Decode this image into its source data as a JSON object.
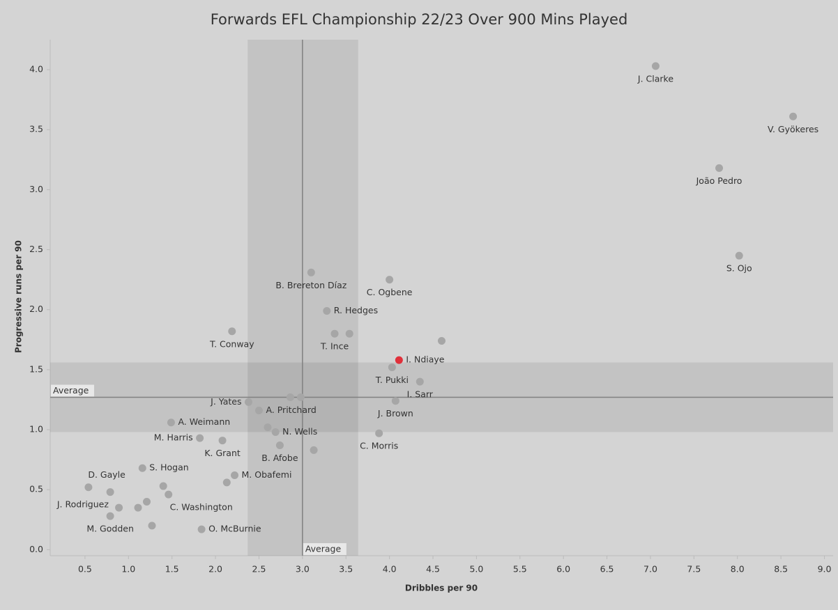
{
  "chart_data": {
    "type": "scatter",
    "title": "Forwards EFL Championship 22/23 Over 900 Mins Played",
    "x_label": "Dribbles per 90",
    "y_label": "Progressive runs per 90",
    "xlim": [
      0.1,
      9.1
    ],
    "ylim": [
      -0.05,
      4.25
    ],
    "xticks": [
      0.5,
      {
        "value": 1,
        "label": "1.0"
      },
      1.5,
      {
        "value": 2,
        "label": "2.0"
      },
      2.5,
      {
        "value": 3,
        "label": "3.0"
      },
      3.5,
      {
        "value": 4,
        "label": "4.0"
      },
      4.5,
      {
        "value": 5,
        "label": "5.0"
      },
      5.5,
      {
        "value": 6,
        "label": "6.0"
      },
      6.5,
      {
        "value": 7,
        "label": "7.0"
      },
      7.5,
      {
        "value": 8,
        "label": "8.0"
      },
      8.5,
      {
        "value": 9,
        "label": "9.0"
      }
    ],
    "yticks": [
      {
        "value": 0,
        "label": "0.0"
      },
      0.5,
      {
        "value": 1,
        "label": "1.0"
      },
      1.5,
      {
        "value": 2,
        "label": "2.0"
      },
      2.5,
      {
        "value": 3,
        "label": "3.0"
      },
      3.5,
      {
        "value": 4,
        "label": "4.0"
      }
    ],
    "reference": {
      "x": 3.0,
      "y": 1.27,
      "x_band": [
        2.37,
        3.64
      ],
      "y_band": [
        0.98,
        1.56
      ],
      "x_label": "Average",
      "y_label": "Average"
    },
    "series": [
      {
        "color": "#a6a6a6",
        "x": [
          7.06,
          8.64,
          7.79,
          8.02,
          3.1,
          4.0,
          3.28,
          2.19,
          3.37,
          3.54,
          4.6,
          4.03,
          4.35,
          4.07,
          2.38,
          2.86,
          2.98,
          2.5,
          1.49,
          2.69,
          2.6,
          3.88,
          1.82,
          2.08,
          2.74,
          3.13,
          1.16,
          2.22,
          2.13,
          0.79,
          0.54,
          0.79,
          0.89,
          1.11,
          1.21,
          1.4,
          1.27,
          1.46,
          1.84
        ],
        "values": [
          4.03,
          3.61,
          3.18,
          2.45,
          2.31,
          2.25,
          1.99,
          1.82,
          1.8,
          1.8,
          1.74,
          1.52,
          1.4,
          1.24,
          1.23,
          1.27,
          1.27,
          1.16,
          1.06,
          0.98,
          1.02,
          0.97,
          0.93,
          0.91,
          0.87,
          0.83,
          0.68,
          0.62,
          0.56,
          0.48,
          0.52,
          0.28,
          0.35,
          0.35,
          0.4,
          0.53,
          0.2,
          0.46,
          0.17
        ],
        "point_labels": [
          "J. Clarke",
          "V. Gyökeres",
          "João Pedro",
          "S. Ojo",
          "B. Brereton Díaz",
          "C. Ogbene",
          "R. Hedges",
          "T. Conway",
          "T. Ince",
          null,
          null,
          "T. Pukki",
          "I. Sarr",
          "J. Brown",
          "J. Yates",
          null,
          null,
          "A. Pritchard",
          "A. Weimann",
          "N. Wells",
          null,
          "C. Morris",
          "M. Harris",
          "K. Grant",
          "B. Afobe",
          null,
          "S. Hogan",
          "M. Obafemi",
          null,
          "D. Gayle",
          "J. Rodriguez",
          "M. Godden",
          null,
          null,
          null,
          null,
          null,
          "C. Washington",
          "O. McBurnie"
        ]
      },
      {
        "color": "#e0303a",
        "x": [
          4.11
        ],
        "values": [
          1.58
        ],
        "point_labels": [
          "I. Ndiaye"
        ]
      }
    ]
  }
}
